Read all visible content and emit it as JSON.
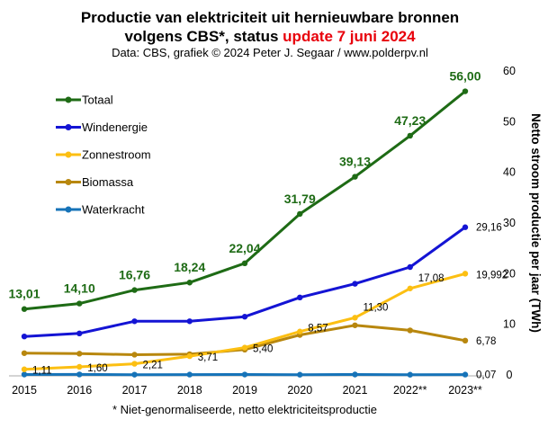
{
  "title_line1": "Productie van elektriciteit  uit hernieuwbare bronnen",
  "title_line2_prefix": "volgens CBS*, status",
  "title_line2_highlight": "update 7 juni 2024",
  "subtitle": "Data: CBS, grafiek © 2024 Peter J. Segaar / www.polderpv.nl",
  "footnote": "* Niet-genormaliseerde,  netto elektriciteitsproductie",
  "chart_data": {
    "type": "line",
    "categories": [
      "2015",
      "2016",
      "2017",
      "2018",
      "2019",
      "2020",
      "2021",
      "2022**",
      "2023**"
    ],
    "ylabel": "Netto stroom productie per jaar (TWh)",
    "ylim": [
      0,
      60
    ],
    "yticks": [
      "0",
      "10",
      "20",
      "30",
      "40",
      "50",
      "60"
    ],
    "grid": false,
    "legend_position": "top-left",
    "series": [
      {
        "name": "Totaal",
        "color": "#1e6b15",
        "values": [
          13.01,
          14.1,
          16.76,
          18.24,
          22.04,
          31.79,
          39.13,
          47.23,
          56.0
        ],
        "labels": [
          "13,01",
          "14,10",
          "16,76",
          "18,24",
          "22,04",
          "31,79",
          "39,13",
          "47,23",
          "56,00"
        ]
      },
      {
        "name": "Windenergie",
        "color": "#1414d4",
        "values": [
          7.6,
          8.2,
          10.6,
          10.6,
          11.5,
          15.3,
          18.0,
          21.3,
          29.16
        ],
        "labels": [
          "",
          "",
          "",
          "",
          "",
          "",
          "",
          "",
          "29,16"
        ]
      },
      {
        "name": "Zonnestroom",
        "color": "#fcbf12",
        "values": [
          1.11,
          1.6,
          2.21,
          3.71,
          5.4,
          8.57,
          11.3,
          17.08,
          19.992
        ],
        "labels": [
          "1,11",
          "1,60",
          "2,21",
          "3,71",
          "5,40",
          "8,57",
          "11,30",
          "17,08",
          "19,992"
        ]
      },
      {
        "name": "Biomassa",
        "color": "#b8870e",
        "values": [
          4.3,
          4.2,
          4.0,
          4.1,
          5.0,
          7.9,
          9.8,
          8.8,
          6.78
        ],
        "labels": [
          "",
          "",
          "",
          "",
          "",
          "",
          "",
          "",
          "6,78"
        ]
      },
      {
        "name": "Waterkracht",
        "color": "#1673b8",
        "values": [
          0.09,
          0.1,
          0.06,
          0.07,
          0.08,
          0.05,
          0.09,
          0.05,
          0.07
        ],
        "labels": [
          "",
          "",
          "",
          "",
          "",
          "",
          "",
          "",
          "0,07"
        ]
      }
    ]
  }
}
